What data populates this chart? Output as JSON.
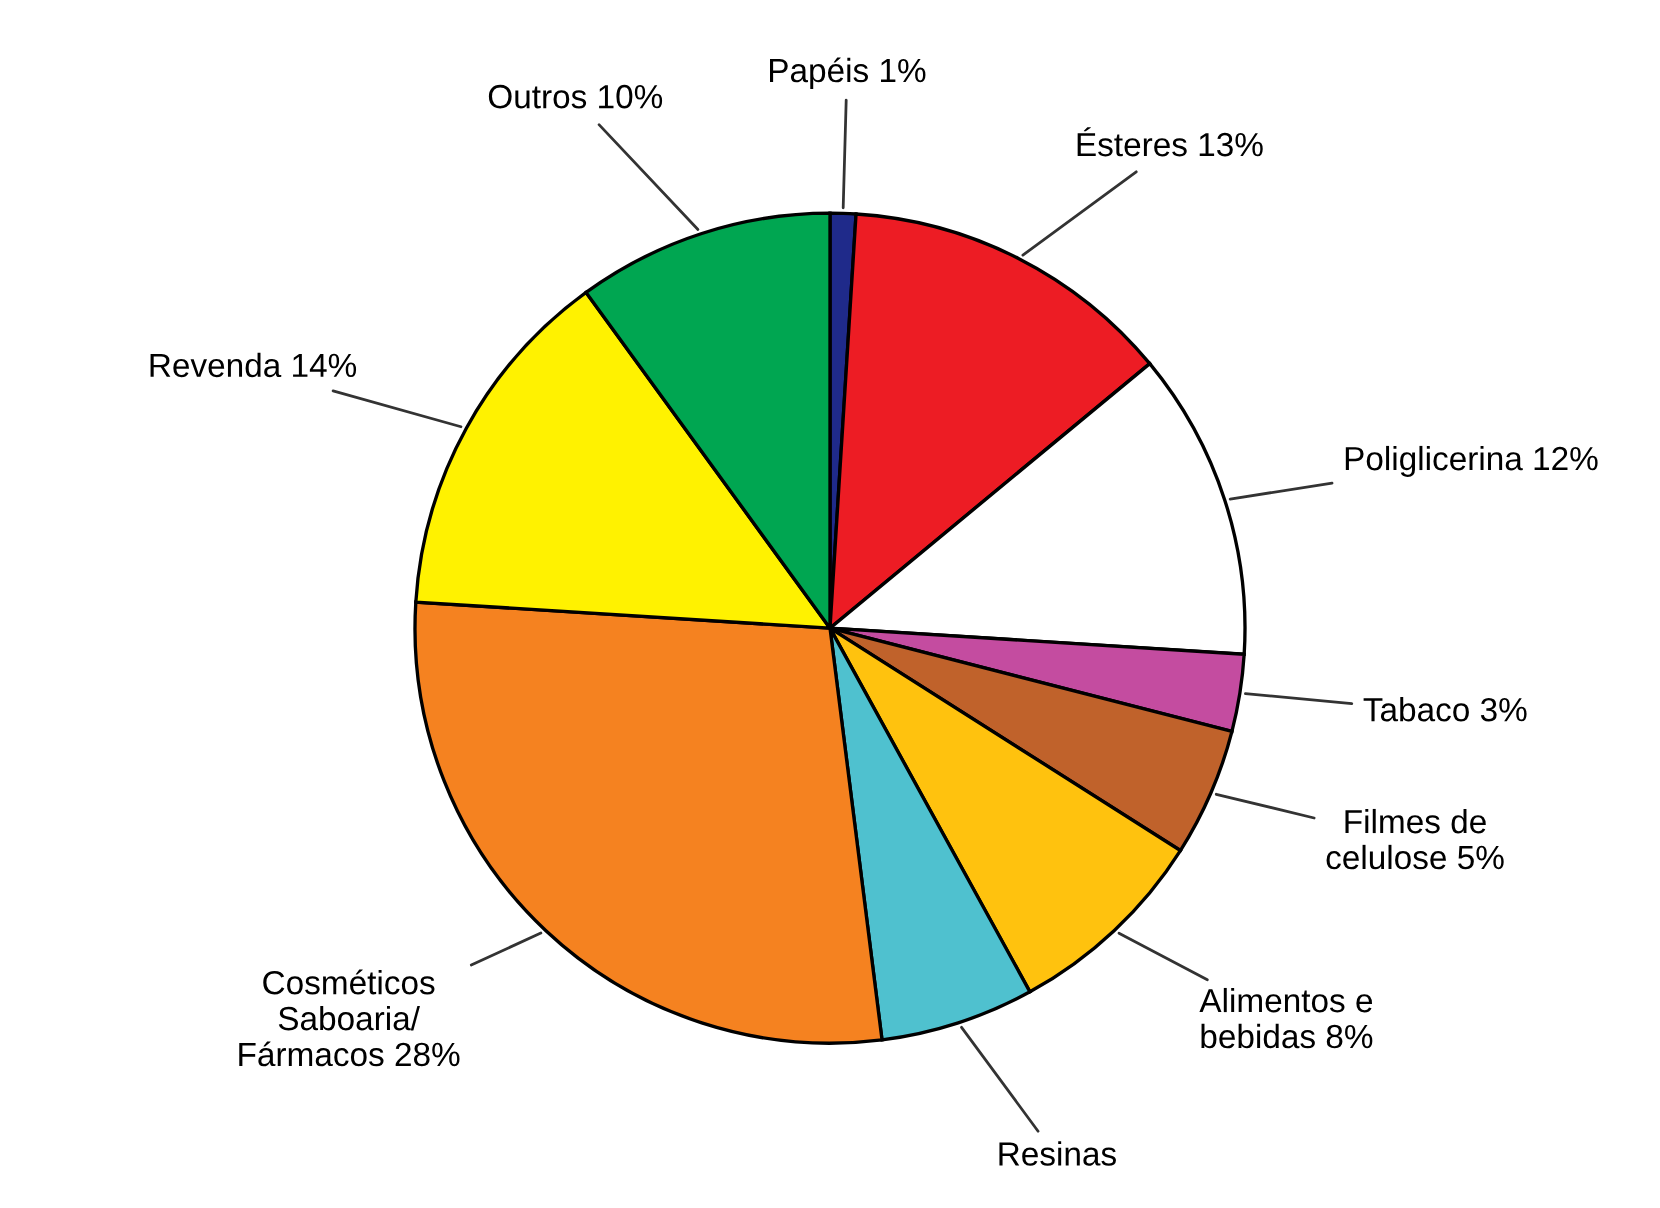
{
  "chart_data": {
    "type": "pie",
    "categories": [
      "Papéis",
      "Ésteres",
      "Poliglicerina",
      "Tabaco",
      "Filmes de\ncelulose",
      "Alimentos e\nbebidas",
      "Resinas",
      "Cosméticos\nSaboaria/\nFármacos",
      "Revenda",
      "Outros"
    ],
    "values": [
      1,
      13,
      12,
      3,
      5,
      8,
      6,
      28,
      14,
      10
    ],
    "value_labels": [
      "1%",
      "13%",
      "12%",
      "3%",
      "5%",
      "8%",
      null,
      "28%",
      "14%",
      "10%"
    ],
    "colors": [
      "#1f2a8a",
      "#ed1c24",
      "#ffffff",
      "#c44ca0",
      "#c0622b",
      "#ffc20e",
      "#4fc1cf",
      "#f58220",
      "#fff200",
      "#00a651"
    ],
    "legend": false
  }
}
